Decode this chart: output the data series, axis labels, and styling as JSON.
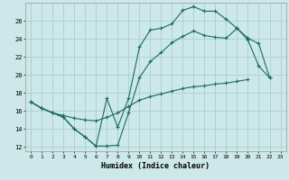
{
  "xlabel": "Humidex (Indice chaleur)",
  "x_ticks": [
    0,
    1,
    2,
    3,
    4,
    5,
    6,
    7,
    8,
    9,
    10,
    11,
    12,
    13,
    14,
    15,
    16,
    17,
    18,
    19,
    20,
    21,
    22,
    23
  ],
  "xlim": [
    -0.5,
    23.5
  ],
  "ylim": [
    11.5,
    28.0
  ],
  "y_ticks": [
    12,
    14,
    16,
    18,
    20,
    22,
    24,
    26
  ],
  "bg_color": "#cce8e8",
  "grid_color": "#aacfcf",
  "line_color": "#1a6b60",
  "line1_y": [
    17.0,
    16.3,
    15.8,
    15.3,
    14.0,
    13.1,
    12.1,
    17.4,
    14.2,
    17.4,
    23.1,
    25.0,
    25.2,
    25.7,
    27.2,
    27.6,
    27.1,
    27.1,
    26.2,
    25.2,
    23.9,
    21.0,
    19.7,
    null
  ],
  "line2_y": [
    17.0,
    16.3,
    15.8,
    15.3,
    14.0,
    13.1,
    12.1,
    12.1,
    12.2,
    15.8,
    19.7,
    21.5,
    22.5,
    23.6,
    24.3,
    24.9,
    24.4,
    24.2,
    24.1,
    25.2,
    24.1,
    23.5,
    19.7,
    null
  ],
  "line3_y": [
    17.0,
    16.3,
    15.8,
    15.5,
    15.2,
    15.0,
    14.9,
    15.3,
    15.8,
    16.5,
    17.2,
    17.6,
    17.9,
    18.2,
    18.5,
    18.7,
    18.8,
    19.0,
    19.1,
    19.3,
    19.5,
    null,
    null,
    null
  ]
}
